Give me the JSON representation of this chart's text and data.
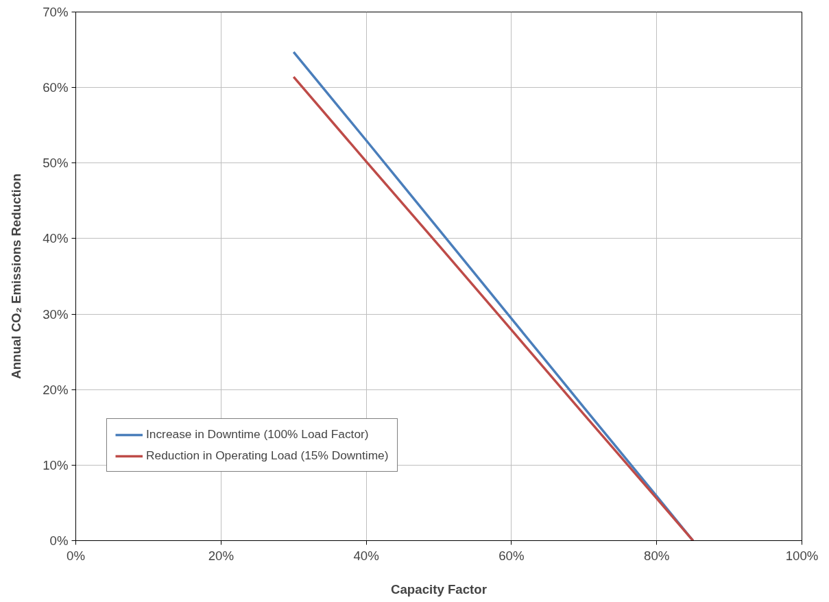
{
  "chart_data": {
    "type": "line",
    "xlabel": "Capacity Factor",
    "ylabel": "Annual CO₂ Emissions Reduction",
    "x": [
      30,
      40,
      50,
      60,
      70,
      80,
      85
    ],
    "series": [
      {
        "name": "Increase in Downtime (100% Load Factor)",
        "color": "#4a7ebb",
        "values": [
          64.7,
          53,
          41.2,
          29.4,
          17.6,
          5.9,
          0
        ]
      },
      {
        "name": "Reduction in Operating Load (15% Downtime)",
        "color": "#be4b48",
        "values": [
          61.4,
          50.2,
          39.1,
          27.9,
          16.7,
          5.6,
          0
        ]
      }
    ],
    "xlim": [
      0,
      100
    ],
    "ylim": [
      0,
      70
    ],
    "xticks": [
      {
        "value": 0,
        "label": "0%"
      },
      {
        "value": 20,
        "label": "20%"
      },
      {
        "value": 40,
        "label": "40%"
      },
      {
        "value": 60,
        "label": "60%"
      },
      {
        "value": 80,
        "label": "80%"
      },
      {
        "value": 100,
        "label": "100%"
      }
    ],
    "yticks": [
      {
        "value": 0,
        "label": "0%"
      },
      {
        "value": 10,
        "label": "10%"
      },
      {
        "value": 20,
        "label": "20%"
      },
      {
        "value": 30,
        "label": "30%"
      },
      {
        "value": 40,
        "label": "40%"
      },
      {
        "value": 50,
        "label": "50%"
      },
      {
        "value": 60,
        "label": "60%"
      },
      {
        "value": 70,
        "label": "70%"
      }
    ],
    "grid": true,
    "legend": "bottom left",
    "marker": "none",
    "line_style": "solid"
  }
}
